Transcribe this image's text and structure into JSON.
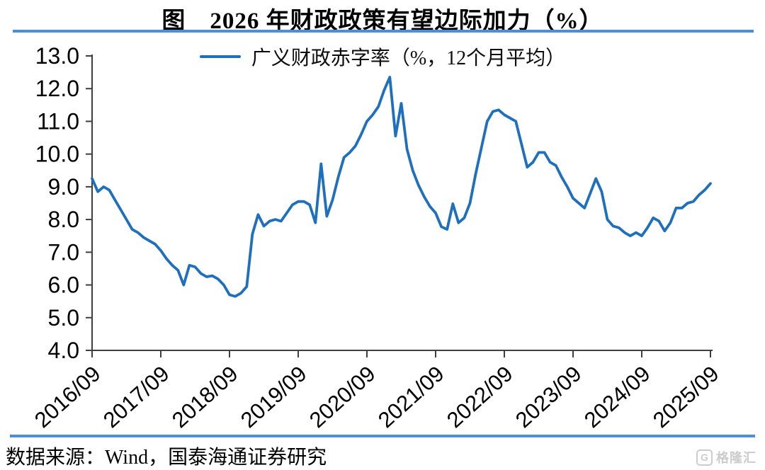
{
  "title": "图　2026 年财政政策有望边际加力（%）",
  "legend": {
    "label": "广义财政赤字率（%，12个月平均）"
  },
  "footer": {
    "source": "数据来源：Wind，国泰海通证券研究"
  },
  "watermark": {
    "icon_letter": "G",
    "text": "格隆汇"
  },
  "colors": {
    "line": "#1f6fbf",
    "separator": "#4e8fd0",
    "axis": "#3f3f3f",
    "tick_label": "#000000"
  },
  "chart_data": {
    "type": "line",
    "title": "图　2026 年财政政策有望边际加力（%）",
    "xlabel": "",
    "ylabel": "",
    "ylim": [
      4.0,
      13.0
    ],
    "grid": false,
    "legend_position": "top-center",
    "ytick_labels": [
      "13.0",
      "12.0",
      "11.0",
      "10.0",
      "9.0",
      "8.0",
      "7.0",
      "6.0",
      "5.0",
      "4.0"
    ],
    "xtick_labels": [
      "2016/09",
      "2017/09",
      "2018/09",
      "2019/09",
      "2020/09",
      "2021/09",
      "2022/09",
      "2023/09",
      "2024/09",
      "2025/09"
    ],
    "xtick_step": 12,
    "categories": [
      "2016/09",
      "2016/10",
      "2016/11",
      "2016/12",
      "2017/01",
      "2017/02",
      "2017/03",
      "2017/04",
      "2017/05",
      "2017/06",
      "2017/07",
      "2017/08",
      "2017/09",
      "2017/10",
      "2017/11",
      "2017/12",
      "2018/01",
      "2018/02",
      "2018/03",
      "2018/04",
      "2018/05",
      "2018/06",
      "2018/07",
      "2018/08",
      "2018/09",
      "2018/10",
      "2018/11",
      "2018/12",
      "2019/01",
      "2019/02",
      "2019/03",
      "2019/04",
      "2019/05",
      "2019/06",
      "2019/07",
      "2019/08",
      "2019/09",
      "2019/10",
      "2019/11",
      "2019/12",
      "2020/01",
      "2020/02",
      "2020/03",
      "2020/04",
      "2020/05",
      "2020/06",
      "2020/07",
      "2020/08",
      "2020/09",
      "2020/10",
      "2020/11",
      "2020/12",
      "2021/01",
      "2021/02",
      "2021/03",
      "2021/04",
      "2021/05",
      "2021/06",
      "2021/07",
      "2021/08",
      "2021/09",
      "2021/10",
      "2021/11",
      "2021/12",
      "2022/01",
      "2022/02",
      "2022/03",
      "2022/04",
      "2022/05",
      "2022/06",
      "2022/07",
      "2022/08",
      "2022/09",
      "2022/10",
      "2022/11",
      "2022/12",
      "2023/01",
      "2023/02",
      "2023/03",
      "2023/04",
      "2023/05",
      "2023/06",
      "2023/07",
      "2023/08",
      "2023/09",
      "2023/10",
      "2023/11",
      "2023/12",
      "2024/01",
      "2024/02",
      "2024/03",
      "2024/04",
      "2024/05",
      "2024/06",
      "2024/07",
      "2024/08",
      "2024/09",
      "2024/10",
      "2024/11",
      "2024/12",
      "2025/01",
      "2025/02",
      "2025/03",
      "2025/04",
      "2025/05",
      "2025/06",
      "2025/07",
      "2025/08",
      "2025/09"
    ],
    "series": [
      {
        "name": "广义财政赤字率（%，12个月平均）",
        "values": [
          9.25,
          8.85,
          9.0,
          8.9,
          8.6,
          8.3,
          8.0,
          7.7,
          7.6,
          7.45,
          7.35,
          7.25,
          7.05,
          6.8,
          6.6,
          6.45,
          6.0,
          6.6,
          6.55,
          6.35,
          6.25,
          6.28,
          6.18,
          6.0,
          5.7,
          5.65,
          5.75,
          5.95,
          7.55,
          8.15,
          7.8,
          7.95,
          8.0,
          7.95,
          8.2,
          8.45,
          8.55,
          8.55,
          8.45,
          7.9,
          9.7,
          8.1,
          8.6,
          9.3,
          9.9,
          10.05,
          10.25,
          10.6,
          11.0,
          11.2,
          11.45,
          11.95,
          12.35,
          10.55,
          11.55,
          10.15,
          9.5,
          9.05,
          8.7,
          8.4,
          8.2,
          7.78,
          7.7,
          8.48,
          7.9,
          8.05,
          8.5,
          9.4,
          10.2,
          11.0,
          11.3,
          11.35,
          11.2,
          11.1,
          11.0,
          10.3,
          9.6,
          9.75,
          10.05,
          10.05,
          9.75,
          9.65,
          9.3,
          9.0,
          8.65,
          8.5,
          8.35,
          8.8,
          9.25,
          8.85,
          8.0,
          7.8,
          7.75,
          7.6,
          7.5,
          7.6,
          7.5,
          7.75,
          8.05,
          7.95,
          7.65,
          7.9,
          8.35,
          8.35,
          8.5,
          8.55,
          8.75,
          8.9,
          9.1
        ]
      }
    ]
  }
}
